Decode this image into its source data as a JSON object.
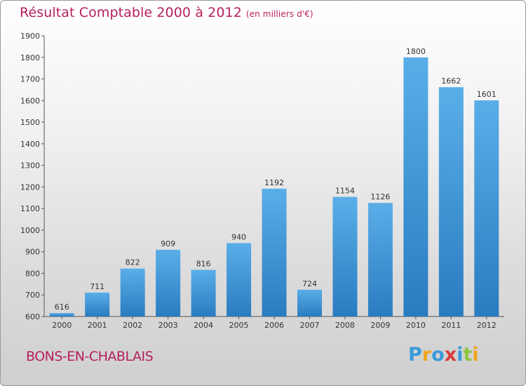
{
  "header": {
    "title": "Résultat Comptable 2000 à 2012",
    "subtitle": "(en milliers d'€)"
  },
  "footer": {
    "town": "BONS-EN-CHABLAIS",
    "logo": {
      "letters": [
        "P",
        "r",
        "o",
        "x",
        "i",
        "t",
        "i"
      ],
      "colors": [
        "#3a9ad9",
        "#f2a51c",
        "#3a9ad9",
        "#d93a3a",
        "#3a9ad9",
        "#8dc63f",
        "#f2a51c"
      ]
    }
  },
  "colors": {
    "bar_top": "#5aaee8",
    "bar_bottom": "#2a7cc0",
    "title": "#b5205e"
  },
  "chart_data": {
    "type": "bar",
    "title": "Résultat Comptable 2000 à 2012",
    "subtitle": "(en milliers d'€)",
    "categories": [
      "2000",
      "2001",
      "2002",
      "2003",
      "2004",
      "2005",
      "2006",
      "2007",
      "2008",
      "2009",
      "2010",
      "2011",
      "2012"
    ],
    "values": [
      616,
      711,
      822,
      909,
      816,
      940,
      1192,
      724,
      1154,
      1126,
      1800,
      1662,
      1601
    ],
    "ylim": [
      600,
      1900
    ],
    "yticks": [
      600,
      700,
      800,
      900,
      1000,
      1100,
      1200,
      1300,
      1400,
      1500,
      1600,
      1700,
      1800,
      1900
    ],
    "grid": false,
    "data_labels": true
  }
}
